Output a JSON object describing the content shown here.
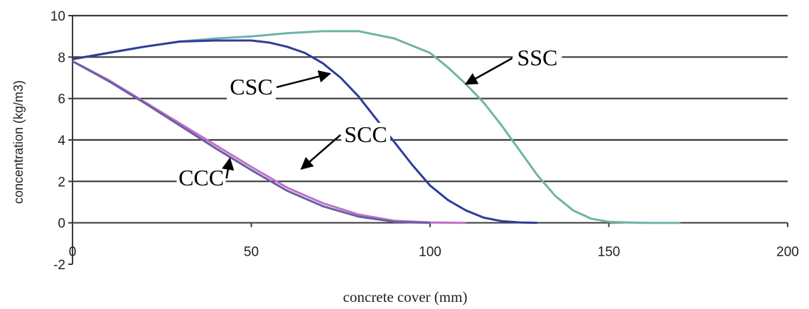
{
  "chart_data": {
    "type": "line",
    "title": "",
    "xlabel": "concrete cover (mm)",
    "ylabel": "concentration (kg/m3)",
    "xlim": [
      0,
      200
    ],
    "ylim": [
      -2,
      10
    ],
    "xticks": [
      0,
      50,
      100,
      150,
      200
    ],
    "yticks": [
      -2,
      0,
      2,
      4,
      6,
      8,
      10
    ],
    "grid": "horizontal",
    "legend": "none",
    "series": [
      {
        "name": "SSC",
        "color": "#6fb3a8",
        "x": [
          0,
          10,
          20,
          30,
          40,
          50,
          60,
          70,
          80,
          90,
          100,
          105,
          110,
          115,
          120,
          125,
          130,
          135,
          140,
          145,
          150,
          155,
          160,
          165,
          170
        ],
        "y": [
          7.9,
          8.2,
          8.5,
          8.75,
          8.9,
          9.0,
          9.15,
          9.25,
          9.25,
          8.9,
          8.2,
          7.5,
          6.7,
          5.8,
          4.7,
          3.5,
          2.3,
          1.3,
          0.6,
          0.2,
          0.05,
          0.02,
          0,
          0,
          0
        ]
      },
      {
        "name": "CSC",
        "color": "#2e3d99",
        "x": [
          0,
          10,
          20,
          30,
          40,
          50,
          55,
          60,
          65,
          70,
          75,
          80,
          85,
          90,
          95,
          100,
          105,
          110,
          115,
          120,
          125,
          130
        ],
        "y": [
          7.9,
          8.2,
          8.5,
          8.75,
          8.8,
          8.8,
          8.7,
          8.5,
          8.2,
          7.7,
          7.0,
          6.1,
          5.0,
          3.9,
          2.8,
          1.8,
          1.1,
          0.6,
          0.25,
          0.08,
          0.02,
          0
        ]
      },
      {
        "name": "SCC",
        "color": "#c070c8",
        "x": [
          0,
          10,
          20,
          30,
          40,
          50,
          60,
          70,
          80,
          90,
          100,
          110
        ],
        "y": [
          7.8,
          6.9,
          5.85,
          4.8,
          3.75,
          2.7,
          1.7,
          0.95,
          0.4,
          0.1,
          0.02,
          0
        ]
      },
      {
        "name": "CCC",
        "color": "#6a5fa6",
        "x": [
          0,
          10,
          20,
          30,
          40,
          50,
          60,
          70,
          80,
          90,
          100
        ],
        "y": [
          7.8,
          6.85,
          5.8,
          4.7,
          3.6,
          2.55,
          1.55,
          0.8,
          0.3,
          0.05,
          0
        ]
      }
    ],
    "annotations": [
      {
        "text": "SSC",
        "x": 130,
        "y": 7.6,
        "arrow_to": [
          110,
          6.7
        ]
      },
      {
        "text": "CSC",
        "x": 50,
        "y": 6.2,
        "arrow_to": [
          72,
          7.2
        ]
      },
      {
        "text": "SCC",
        "x": 82,
        "y": 3.9,
        "arrow_to": [
          64,
          2.6
        ]
      },
      {
        "text": "CCC",
        "x": 36,
        "y": 1.8,
        "arrow_to": [
          44,
          3.1
        ]
      }
    ]
  }
}
